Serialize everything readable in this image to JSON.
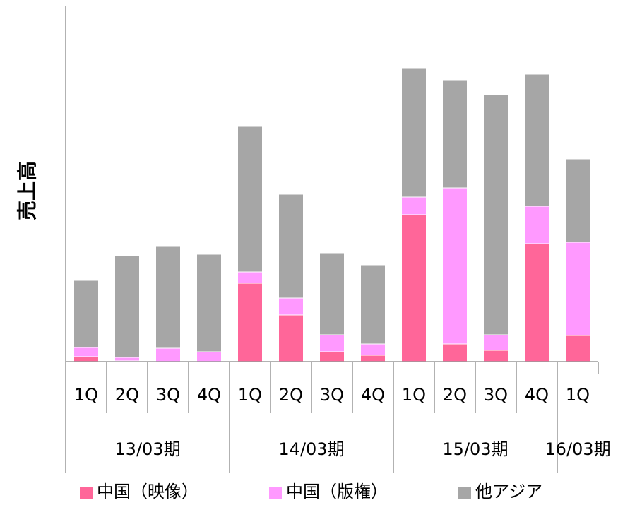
{
  "chart_data": {
    "type": "stacked-bar",
    "ylabel": "売上高",
    "groups": [
      {
        "name": "13/03期",
        "categories": [
          "1Q",
          "2Q",
          "3Q",
          "4Q"
        ]
      },
      {
        "name": "14/03期",
        "categories": [
          "1Q",
          "2Q",
          "3Q",
          "4Q"
        ]
      },
      {
        "name": "15/03期",
        "categories": [
          "1Q",
          "2Q",
          "3Q",
          "4Q"
        ]
      },
      {
        "name": "16/03期",
        "categories": [
          "1Q"
        ]
      }
    ],
    "series": [
      {
        "name": "中国（映像）",
        "color": "#ff6699",
        "values": [
          7,
          1,
          0,
          0,
          111,
          66,
          14,
          9,
          208,
          25,
          16,
          167,
          37
        ]
      },
      {
        "name": "中国（版権）",
        "color": "#ff99ff",
        "values": [
          13,
          5,
          19,
          14,
          16,
          24,
          24,
          16,
          25,
          221,
          22,
          53,
          132
        ]
      },
      {
        "name": "他アジア",
        "color": "#a6a6a6",
        "values": [
          95,
          144,
          144,
          138,
          206,
          147,
          116,
          112,
          183,
          153,
          340,
          187,
          118
        ]
      }
    ],
    "ylim": [
      0,
      504
    ]
  }
}
